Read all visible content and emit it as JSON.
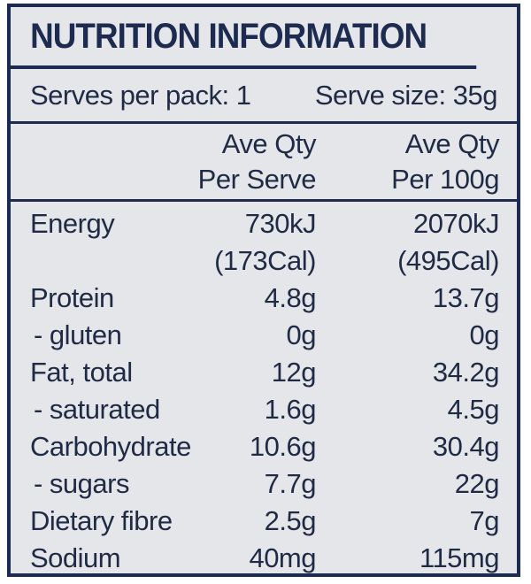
{
  "title": "NUTRITION INFORMATION",
  "serves_per_pack": "Serves per pack: 1",
  "serve_size": "Serve size: 35g",
  "columns": {
    "per_serve_line1": "Ave Qty",
    "per_serve_line2": "Per Serve",
    "per_100g_line1": "Ave Qty",
    "per_100g_line2": "Per 100g"
  },
  "rows": [
    {
      "label": "Energy",
      "per_serve": "730kJ",
      "per_serve_sub": "(173Cal)",
      "per_100g": "2070kJ",
      "per_100g_sub": "(495Cal)"
    },
    {
      "label": "Protein",
      "per_serve": "4.8g",
      "per_100g": "13.7g"
    },
    {
      "label": "- gluten",
      "per_serve": "0g",
      "per_100g": "0g"
    },
    {
      "label": "Fat, total",
      "per_serve": "12g",
      "per_100g": "34.2g"
    },
    {
      "label": "- saturated",
      "per_serve": "1.6g",
      "per_100g": "4.5g"
    },
    {
      "label": "Carbohydrate",
      "per_serve": "10.6g",
      "per_100g": "30.4g"
    },
    {
      "label": "- sugars",
      "per_serve": "7.7g",
      "per_100g": "22g"
    },
    {
      "label": "Dietary fibre",
      "per_serve": "2.5g",
      "per_100g": "7g"
    },
    {
      "label": "Sodium",
      "per_serve": "40mg",
      "per_100g": "115mg"
    }
  ]
}
